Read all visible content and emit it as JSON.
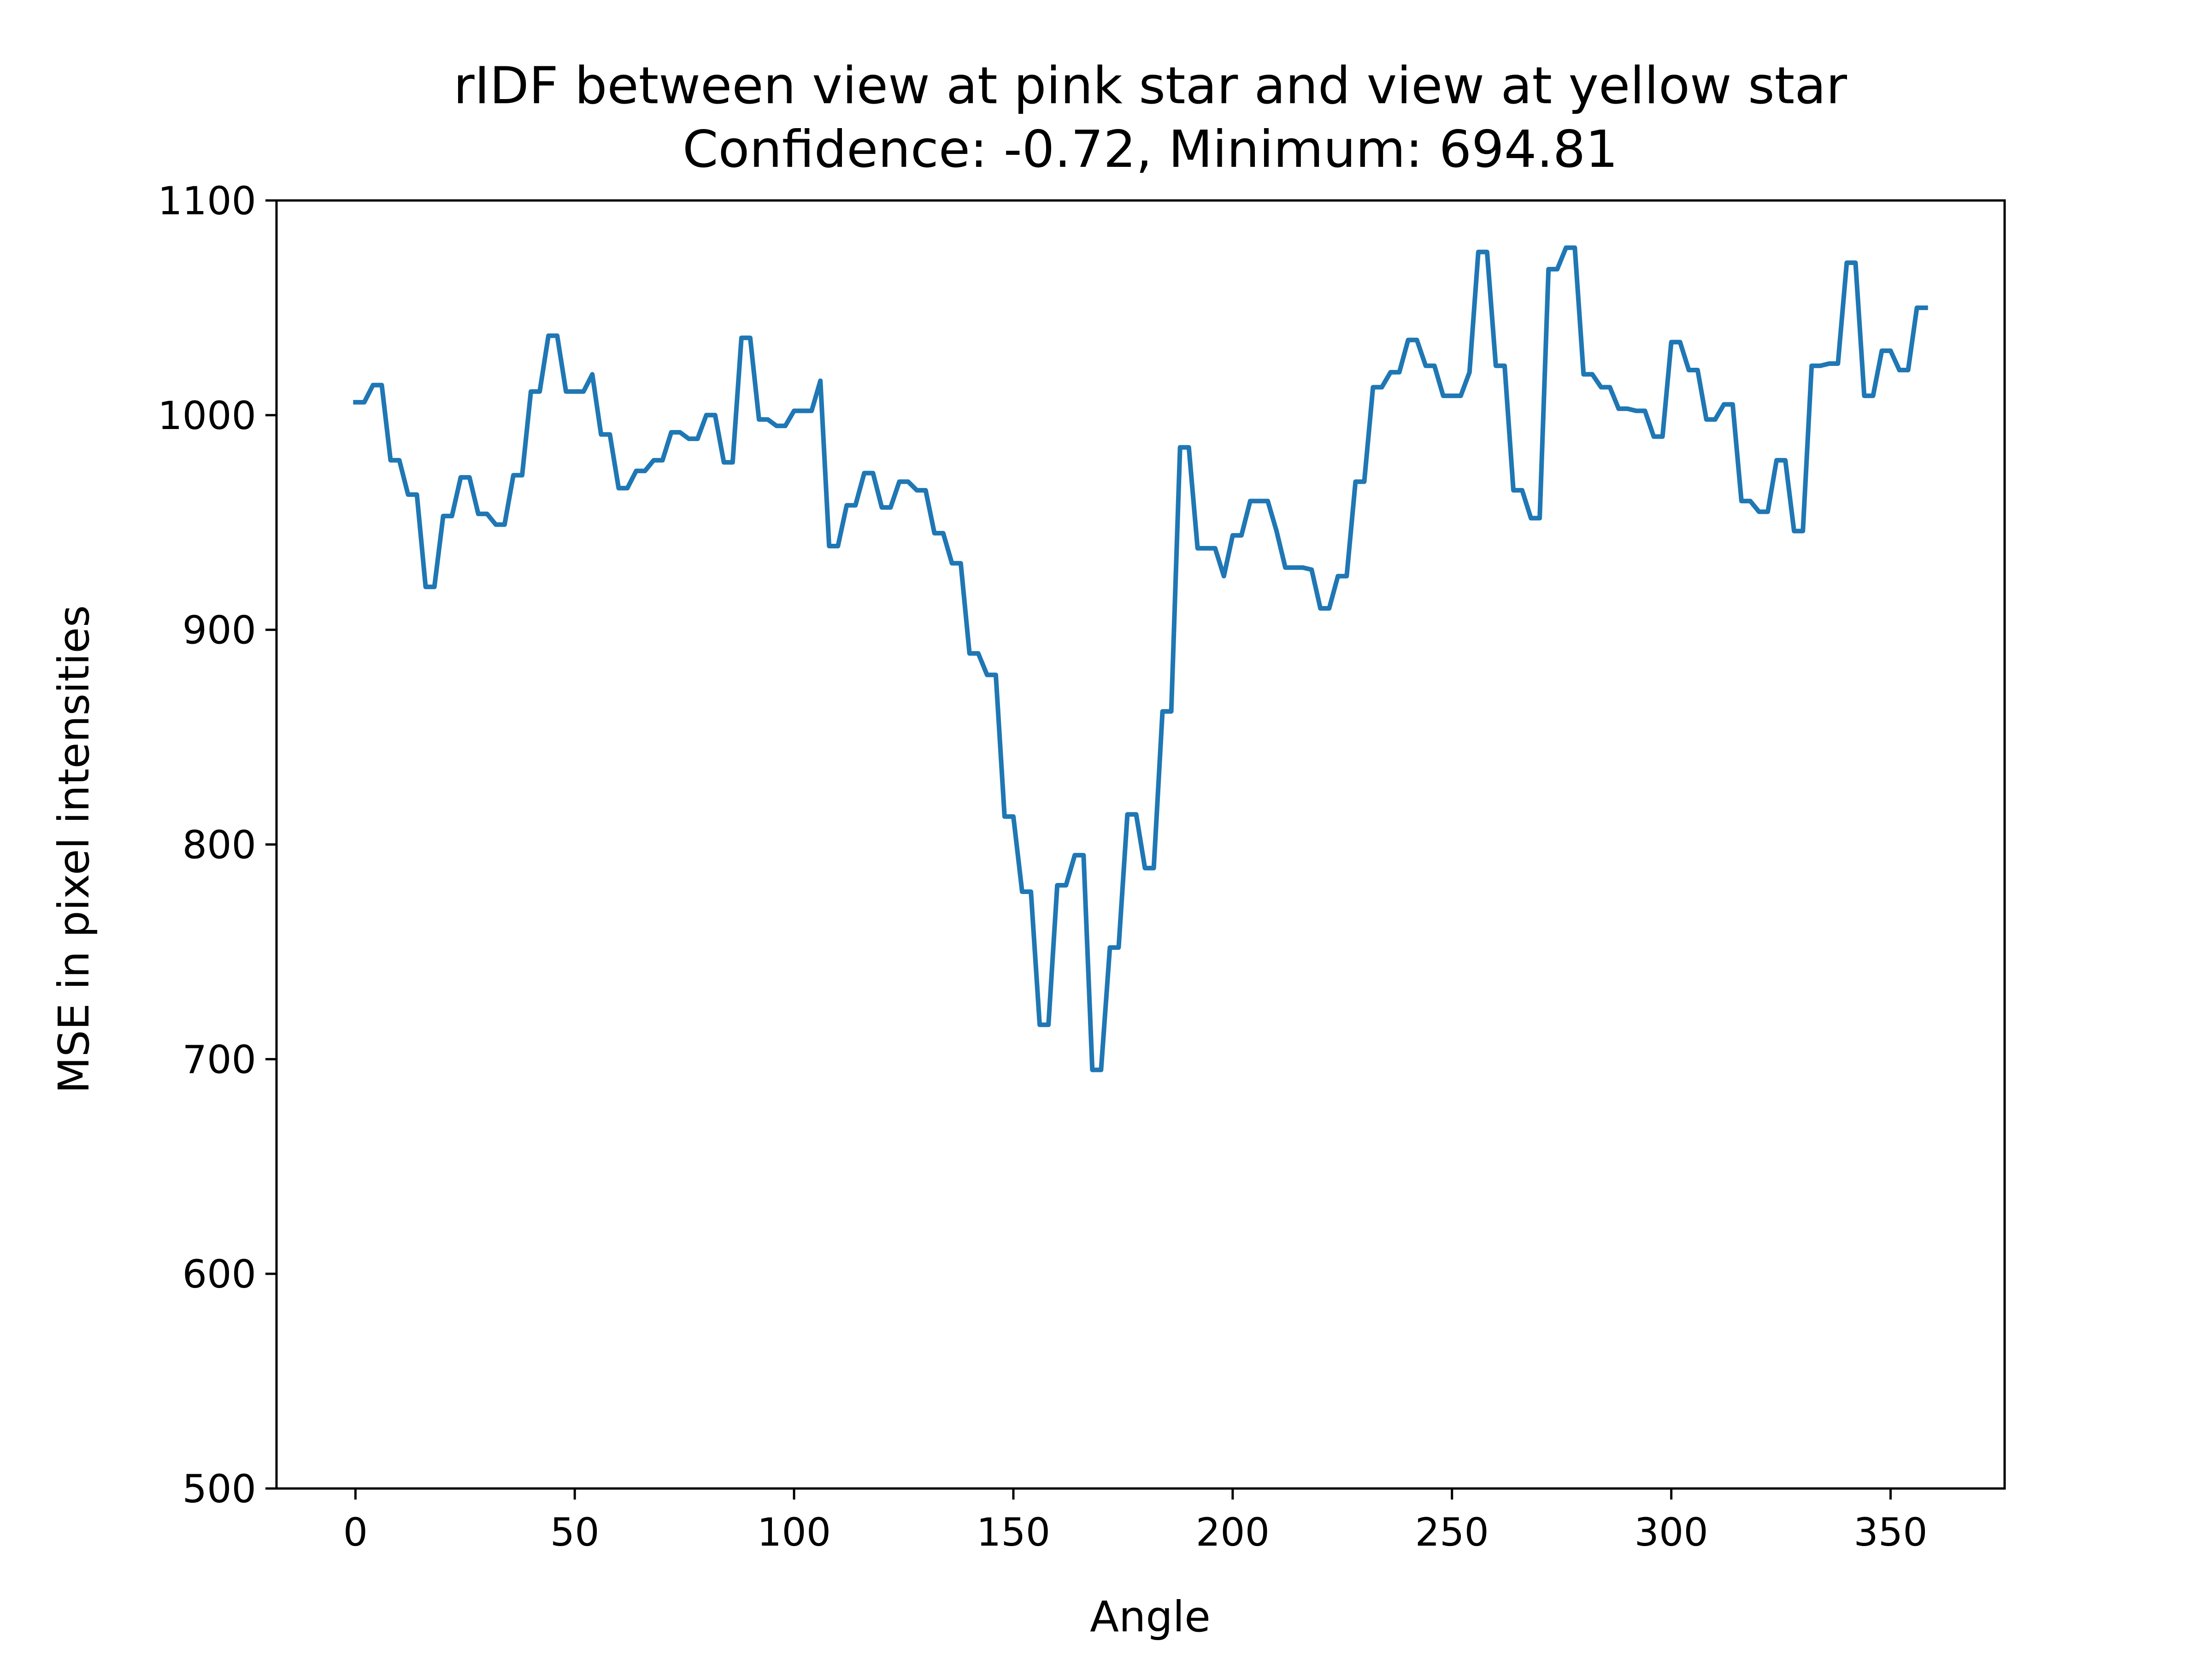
{
  "chart_data": {
    "type": "line",
    "title": "rIDF between view at pink star and view at yellow star",
    "subtitle": "Confidence: -0.72, Minimum: 694.81",
    "xlabel": "Angle",
    "ylabel": "MSE in pixel intensities",
    "xlim": [
      -18,
      376
    ],
    "ylim": [
      500,
      1100
    ],
    "xticks": [
      0,
      50,
      100,
      150,
      200,
      250,
      300,
      350
    ],
    "yticks": [
      500,
      600,
      700,
      800,
      900,
      1000,
      1100
    ],
    "grid": false,
    "legend": "none",
    "series": [
      {
        "color": "#1f77b4",
        "points": [
          [
            0,
            1006
          ],
          [
            2,
            1006
          ],
          [
            4,
            1014
          ],
          [
            6,
            1014
          ],
          [
            8,
            979
          ],
          [
            10,
            979
          ],
          [
            12,
            963
          ],
          [
            14,
            963
          ],
          [
            16,
            920
          ],
          [
            18,
            920
          ],
          [
            20,
            953
          ],
          [
            22,
            953
          ],
          [
            24,
            971
          ],
          [
            26,
            971
          ],
          [
            28,
            954
          ],
          [
            30,
            954
          ],
          [
            32,
            949
          ],
          [
            34,
            949
          ],
          [
            36,
            972
          ],
          [
            38,
            972
          ],
          [
            40,
            1011
          ],
          [
            42,
            1011
          ],
          [
            44,
            1037
          ],
          [
            46,
            1037
          ],
          [
            48,
            1011
          ],
          [
            50,
            1011
          ],
          [
            52,
            1011
          ],
          [
            54,
            1019
          ],
          [
            56,
            991
          ],
          [
            58,
            991
          ],
          [
            60,
            966
          ],
          [
            62,
            966
          ],
          [
            64,
            974
          ],
          [
            66,
            974
          ],
          [
            68,
            979
          ],
          [
            70,
            979
          ],
          [
            72,
            992
          ],
          [
            74,
            992
          ],
          [
            76,
            989
          ],
          [
            78,
            989
          ],
          [
            80,
            1000
          ],
          [
            82,
            1000
          ],
          [
            84,
            978
          ],
          [
            86,
            978
          ],
          [
            88,
            1036
          ],
          [
            90,
            1036
          ],
          [
            92,
            998
          ],
          [
            94,
            998
          ],
          [
            96,
            995
          ],
          [
            98,
            995
          ],
          [
            100,
            1002
          ],
          [
            102,
            1002
          ],
          [
            104,
            1002
          ],
          [
            106,
            1016
          ],
          [
            108,
            939
          ],
          [
            110,
            939
          ],
          [
            112,
            958
          ],
          [
            114,
            958
          ],
          [
            116,
            973
          ],
          [
            118,
            973
          ],
          [
            120,
            957
          ],
          [
            122,
            957
          ],
          [
            124,
            969
          ],
          [
            126,
            969
          ],
          [
            128,
            965
          ],
          [
            130,
            965
          ],
          [
            132,
            945
          ],
          [
            134,
            945
          ],
          [
            136,
            931
          ],
          [
            138,
            931
          ],
          [
            140,
            889
          ],
          [
            142,
            889
          ],
          [
            144,
            879
          ],
          [
            146,
            879
          ],
          [
            148,
            813
          ],
          [
            150,
            813
          ],
          [
            152,
            778
          ],
          [
            154,
            778
          ],
          [
            156,
            716
          ],
          [
            158,
            716
          ],
          [
            160,
            781
          ],
          [
            162,
            781
          ],
          [
            164,
            795
          ],
          [
            166,
            795
          ],
          [
            168,
            695
          ],
          [
            170,
            695
          ],
          [
            172,
            752
          ],
          [
            174,
            752
          ],
          [
            176,
            814
          ],
          [
            178,
            814
          ],
          [
            180,
            789
          ],
          [
            182,
            789
          ],
          [
            184,
            862
          ],
          [
            186,
            862
          ],
          [
            188,
            985
          ],
          [
            190,
            985
          ],
          [
            192,
            938
          ],
          [
            194,
            938
          ],
          [
            196,
            938
          ],
          [
            198,
            925
          ],
          [
            200,
            944
          ],
          [
            202,
            944
          ],
          [
            204,
            960
          ],
          [
            206,
            960
          ],
          [
            208,
            960
          ],
          [
            210,
            946
          ],
          [
            212,
            929
          ],
          [
            214,
            929
          ],
          [
            216,
            929
          ],
          [
            218,
            928
          ],
          [
            220,
            910
          ],
          [
            222,
            910
          ],
          [
            224,
            925
          ],
          [
            226,
            925
          ],
          [
            228,
            969
          ],
          [
            230,
            969
          ],
          [
            232,
            1013
          ],
          [
            234,
            1013
          ],
          [
            236,
            1020
          ],
          [
            238,
            1020
          ],
          [
            240,
            1035
          ],
          [
            242,
            1035
          ],
          [
            244,
            1023
          ],
          [
            246,
            1023
          ],
          [
            248,
            1009
          ],
          [
            250,
            1009
          ],
          [
            252,
            1009
          ],
          [
            254,
            1020
          ],
          [
            256,
            1076
          ],
          [
            258,
            1076
          ],
          [
            260,
            1023
          ],
          [
            262,
            1023
          ],
          [
            264,
            965
          ],
          [
            266,
            965
          ],
          [
            268,
            952
          ],
          [
            270,
            952
          ],
          [
            272,
            1068
          ],
          [
            274,
            1068
          ],
          [
            276,
            1078
          ],
          [
            278,
            1078
          ],
          [
            280,
            1019
          ],
          [
            282,
            1019
          ],
          [
            284,
            1013
          ],
          [
            286,
            1013
          ],
          [
            288,
            1003
          ],
          [
            290,
            1003
          ],
          [
            292,
            1002
          ],
          [
            294,
            1002
          ],
          [
            296,
            990
          ],
          [
            298,
            990
          ],
          [
            300,
            1034
          ],
          [
            302,
            1034
          ],
          [
            304,
            1021
          ],
          [
            306,
            1021
          ],
          [
            308,
            998
          ],
          [
            310,
            998
          ],
          [
            312,
            1005
          ],
          [
            314,
            1005
          ],
          [
            316,
            960
          ],
          [
            318,
            960
          ],
          [
            320,
            955
          ],
          [
            322,
            955
          ],
          [
            324,
            979
          ],
          [
            326,
            979
          ],
          [
            328,
            946
          ],
          [
            330,
            946
          ],
          [
            332,
            1023
          ],
          [
            334,
            1023
          ],
          [
            336,
            1024
          ],
          [
            338,
            1024
          ],
          [
            340,
            1071
          ],
          [
            342,
            1071
          ],
          [
            344,
            1009
          ],
          [
            346,
            1009
          ],
          [
            348,
            1030
          ],
          [
            350,
            1030
          ],
          [
            352,
            1021
          ],
          [
            354,
            1021
          ],
          [
            356,
            1050
          ],
          [
            358,
            1050
          ]
        ]
      }
    ]
  }
}
